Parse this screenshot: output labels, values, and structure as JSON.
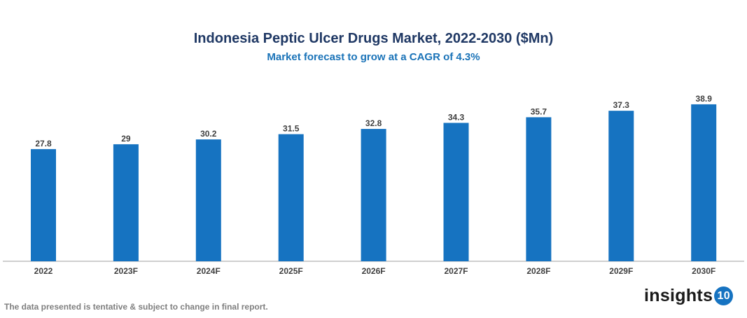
{
  "chart_data": {
    "type": "bar",
    "title": "Indonesia Peptic Ulcer Drugs Market, 2022-2030 ($Mn)",
    "subtitle": "Market forecast to grow at a CAGR of 4.3%",
    "categories": [
      "2022",
      "2023F",
      "2024F",
      "2025F",
      "2026F",
      "2027F",
      "2028F",
      "2029F",
      "2030F"
    ],
    "values": [
      27.8,
      29,
      30.2,
      31.5,
      32.8,
      34.3,
      35.7,
      37.3,
      38.9
    ],
    "ylim": [
      0,
      40
    ],
    "grid": false,
    "bar_color": "#1673c1",
    "data_labels": true
  },
  "footer": {
    "note": "The data presented is tentative & subject to change in final report.",
    "logo_text": "insights",
    "logo_badge": "10"
  }
}
